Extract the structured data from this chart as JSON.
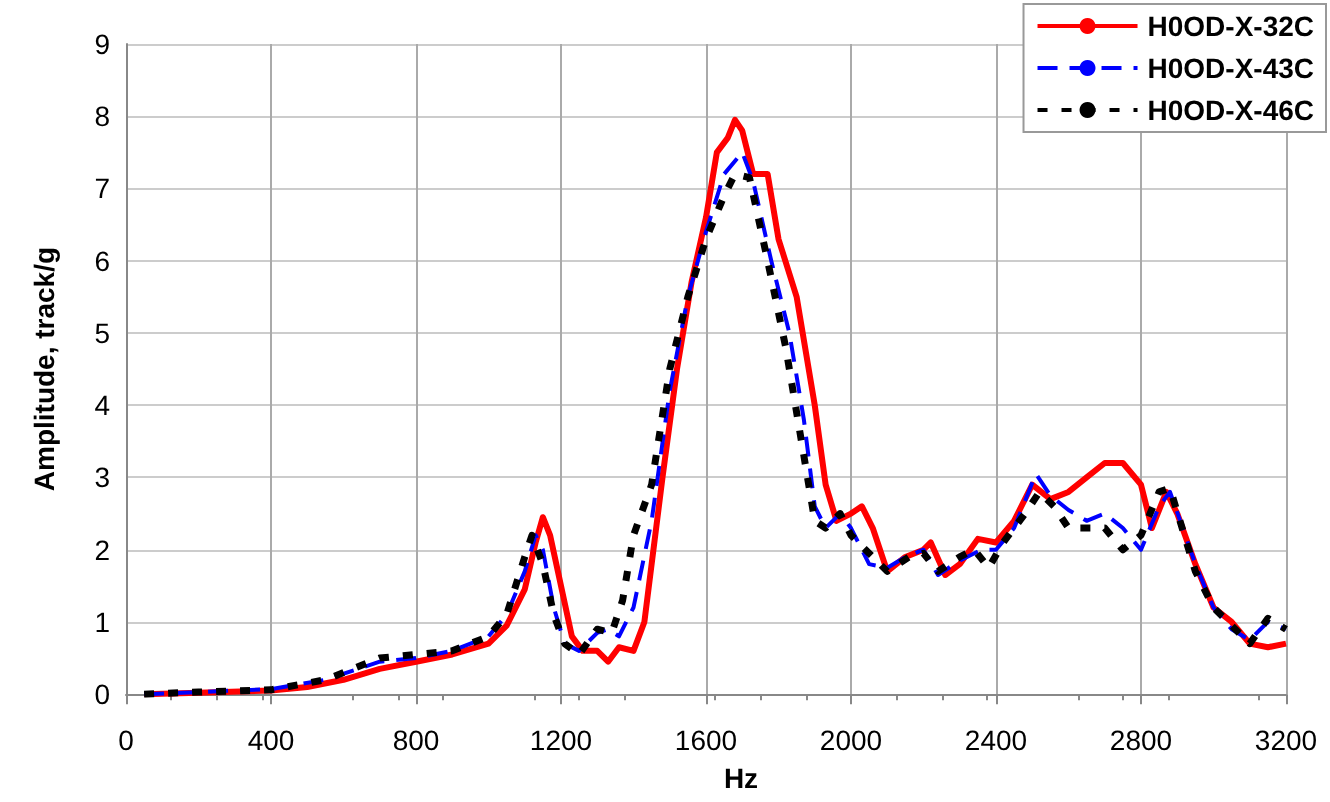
{
  "chart_data": {
    "type": "line",
    "xlabel": "Hz",
    "ylabel": "Amplitude, track/g",
    "xlim": [
      0,
      3200
    ],
    "xticks": [
      0,
      400,
      800,
      1200,
      1600,
      2000,
      2400,
      2800,
      3200
    ],
    "ylim": [
      0,
      9
    ],
    "yticks": [
      0,
      1,
      2,
      3,
      4,
      5,
      6,
      7,
      8,
      9
    ],
    "grid": true,
    "legend": "top right",
    "marker": "none",
    "series": [
      {
        "name": "H0OD-X-32C",
        "color": "#ff0000",
        "line_style": "solid",
        "x": [
          50,
          200,
          400,
          500,
          600,
          700,
          800,
          900,
          1000,
          1050,
          1100,
          1130,
          1150,
          1170,
          1200,
          1230,
          1260,
          1300,
          1330,
          1360,
          1400,
          1430,
          1450,
          1480,
          1520,
          1560,
          1600,
          1630,
          1660,
          1680,
          1700,
          1730,
          1770,
          1800,
          1850,
          1900,
          1930,
          1960,
          2000,
          2030,
          2060,
          2100,
          2150,
          2200,
          2220,
          2260,
          2300,
          2350,
          2400,
          2450,
          2500,
          2550,
          2600,
          2650,
          2700,
          2750,
          2800,
          2830,
          2870,
          2900,
          2950,
          3000,
          3050,
          3100,
          3150,
          3200
        ],
        "values": [
          0,
          0.02,
          0.05,
          0.1,
          0.2,
          0.35,
          0.45,
          0.55,
          0.7,
          0.95,
          1.45,
          2.1,
          2.45,
          2.2,
          1.5,
          0.8,
          0.6,
          0.6,
          0.45,
          0.65,
          0.6,
          1.0,
          1.8,
          3.0,
          4.5,
          5.7,
          6.6,
          7.5,
          7.7,
          7.95,
          7.8,
          7.2,
          7.2,
          6.3,
          5.5,
          4.0,
          2.9,
          2.4,
          2.5,
          2.6,
          2.3,
          1.7,
          1.9,
          2.0,
          2.1,
          1.65,
          1.8,
          2.15,
          2.1,
          2.4,
          2.9,
          2.7,
          2.8,
          3.0,
          3.2,
          3.2,
          2.9,
          2.3,
          2.8,
          2.5,
          1.8,
          1.2,
          1.0,
          0.7,
          0.65,
          0.7
        ]
      },
      {
        "name": "H0OD-X-43C",
        "color": "#0000ff",
        "line_style": "dashed",
        "x": [
          50,
          200,
          400,
          550,
          700,
          800,
          900,
          1000,
          1050,
          1100,
          1130,
          1150,
          1180,
          1210,
          1250,
          1300,
          1330,
          1360,
          1400,
          1450,
          1500,
          1550,
          1600,
          1650,
          1700,
          1730,
          1780,
          1830,
          1870,
          1900,
          1930,
          1970,
          2000,
          2050,
          2100,
          2150,
          2200,
          2240,
          2300,
          2360,
          2400,
          2450,
          2510,
          2550,
          2600,
          2650,
          2700,
          2750,
          2800,
          2850,
          2880,
          2950,
          3000,
          3050,
          3100,
          3150,
          3200
        ],
        "values": [
          0,
          0.03,
          0.07,
          0.2,
          0.45,
          0.5,
          0.6,
          0.8,
          1.1,
          1.7,
          2.2,
          2.0,
          1.2,
          0.7,
          0.6,
          0.85,
          0.9,
          0.8,
          1.2,
          2.4,
          4.2,
          5.5,
          6.4,
          7.2,
          7.5,
          7.1,
          6.0,
          5.0,
          3.8,
          2.6,
          2.3,
          2.5,
          2.3,
          1.8,
          1.75,
          1.9,
          2.0,
          1.65,
          1.85,
          2.0,
          2.0,
          2.3,
          3.05,
          2.75,
          2.55,
          2.4,
          2.5,
          2.3,
          2.0,
          2.6,
          2.8,
          1.8,
          1.2,
          0.9,
          0.75,
          1.0,
          0.9
        ]
      },
      {
        "name": "H0OD-X-46C",
        "color": "#000000",
        "line_style": "dotted",
        "x": [
          50,
          200,
          400,
          550,
          700,
          800,
          900,
          1000,
          1050,
          1100,
          1120,
          1150,
          1180,
          1210,
          1250,
          1300,
          1340,
          1370,
          1400,
          1450,
          1500,
          1550,
          1600,
          1650,
          1680,
          1720,
          1770,
          1820,
          1870,
          1900,
          1930,
          1970,
          2000,
          2060,
          2100,
          2160,
          2200,
          2240,
          2300,
          2340,
          2380,
          2420,
          2480,
          2520,
          2560,
          2600,
          2700,
          2750,
          2800,
          2850,
          2880,
          2950,
          3000,
          3050,
          3100,
          3150,
          3200
        ],
        "values": [
          0,
          0.03,
          0.06,
          0.2,
          0.5,
          0.55,
          0.6,
          0.8,
          1.1,
          1.9,
          2.2,
          1.8,
          1.1,
          0.7,
          0.55,
          0.9,
          0.85,
          1.3,
          2.2,
          2.9,
          4.5,
          5.5,
          6.3,
          6.9,
          7.2,
          7.15,
          6.0,
          4.8,
          3.3,
          2.4,
          2.3,
          2.5,
          2.2,
          1.9,
          1.7,
          1.9,
          1.95,
          1.7,
          1.9,
          2.0,
          1.75,
          2.1,
          2.5,
          2.8,
          2.6,
          2.3,
          2.3,
          2.0,
          2.2,
          2.8,
          2.85,
          1.7,
          1.2,
          0.95,
          0.7,
          1.05,
          0.9
        ]
      }
    ]
  }
}
